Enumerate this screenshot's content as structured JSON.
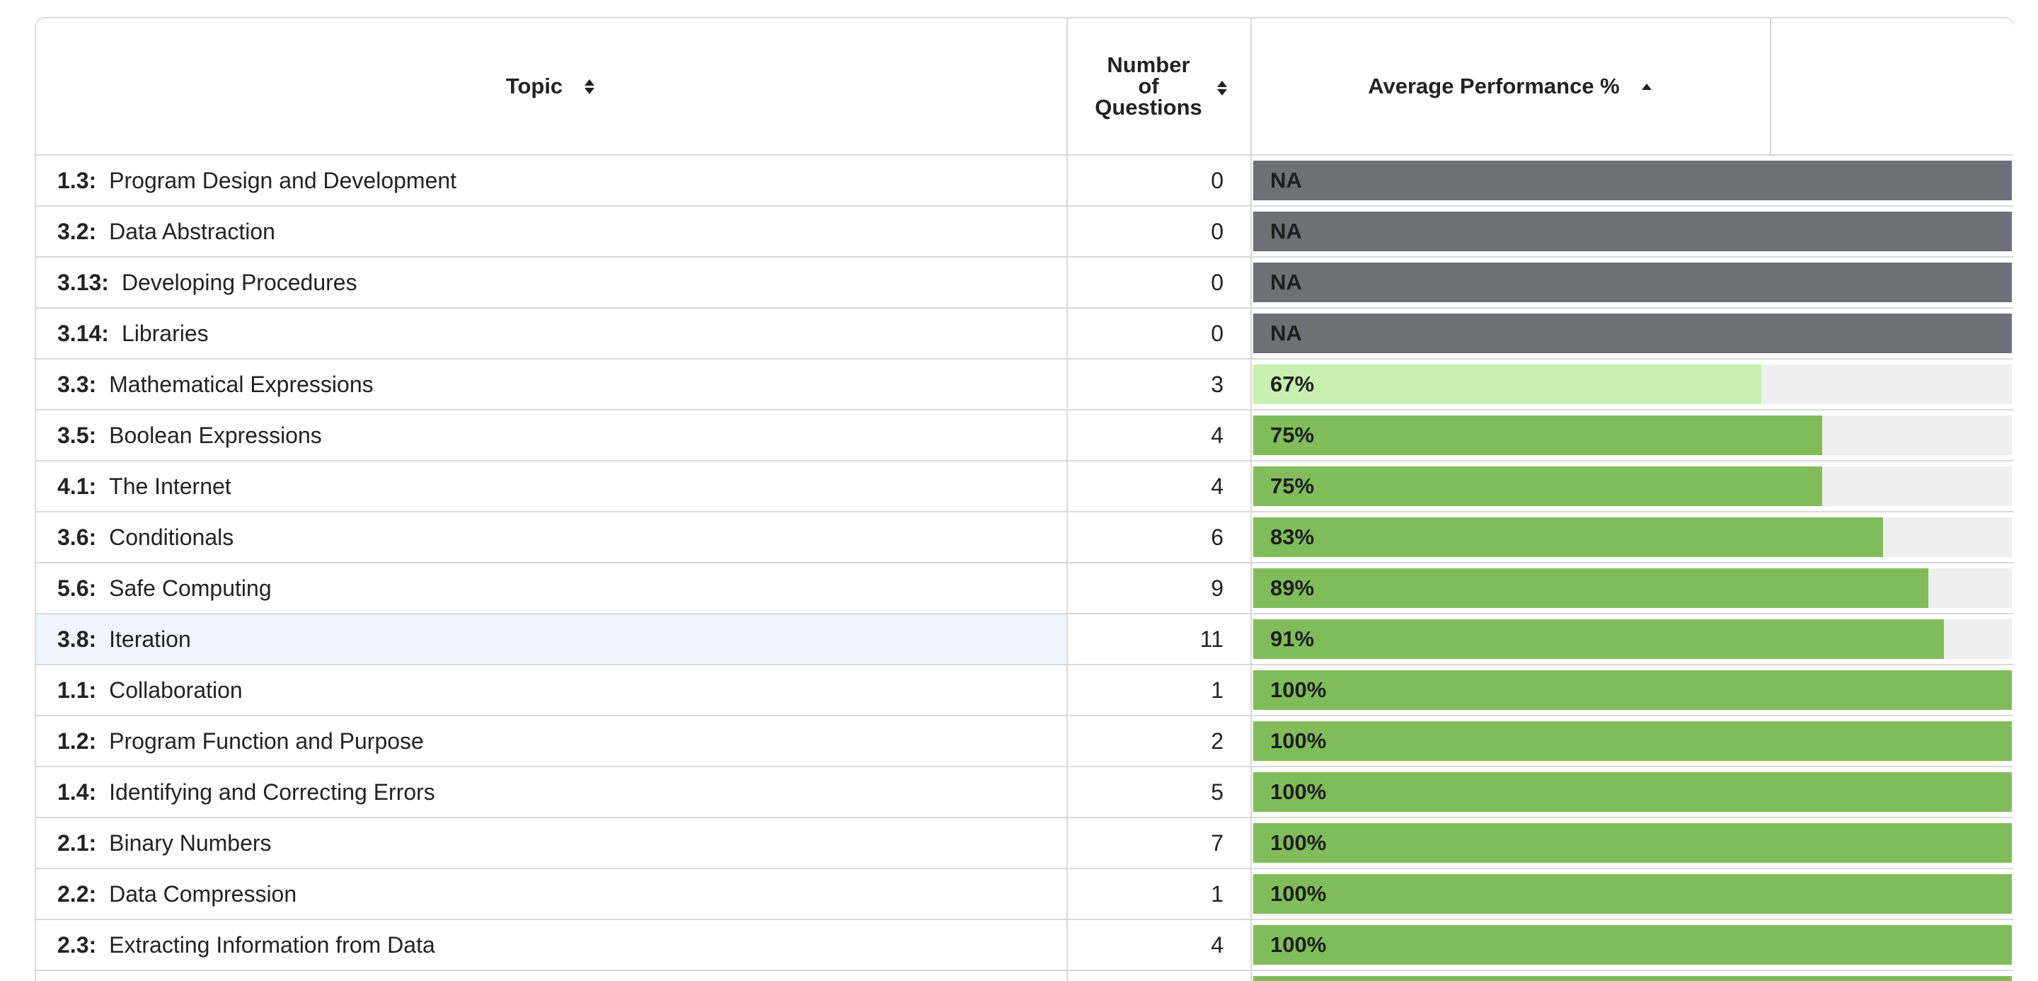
{
  "table": {
    "headers": {
      "topic": "Topic",
      "num_questions": [
        "Number",
        "of",
        "Questions"
      ],
      "avg_performance": "Average Performance %"
    },
    "sort": {
      "column": "avg_performance",
      "direction": "ascending"
    },
    "colors": {
      "na": "#6f6f77",
      "low": "#c8f0b0",
      "high": "#80bd5a",
      "track": "#efefef",
      "highlight_row": "#eef5fd"
    },
    "rows": [
      {
        "code": "1.3:",
        "topic": "Program Design and Development",
        "num": "0",
        "perf_label": "NA",
        "perf_fraction": 1.0,
        "bar_color": "#6f6f77"
      },
      {
        "code": "3.2:",
        "topic": "Data Abstraction",
        "num": "0",
        "perf_label": "NA",
        "perf_fraction": 1.0,
        "bar_color": "#6f6f77"
      },
      {
        "code": "3.13:",
        "topic": "Developing Procedures",
        "num": "0",
        "perf_label": "NA",
        "perf_fraction": 1.0,
        "bar_color": "#6f6f77"
      },
      {
        "code": "3.14:",
        "topic": "Libraries",
        "num": "0",
        "perf_label": "NA",
        "perf_fraction": 1.0,
        "bar_color": "#6f6f77"
      },
      {
        "code": "3.3:",
        "topic": "Mathematical Expressions",
        "num": "3",
        "perf_label": "67%",
        "perf_fraction": 0.67,
        "bar_color": "#c8f0b0"
      },
      {
        "code": "3.5:",
        "topic": "Boolean Expressions",
        "num": "4",
        "perf_label": "75%",
        "perf_fraction": 0.75,
        "bar_color": "#80bd5a"
      },
      {
        "code": "4.1:",
        "topic": "The Internet",
        "num": "4",
        "perf_label": "75%",
        "perf_fraction": 0.75,
        "bar_color": "#80bd5a"
      },
      {
        "code": "3.6:",
        "topic": "Conditionals",
        "num": "6",
        "perf_label": "83%",
        "perf_fraction": 0.83,
        "bar_color": "#80bd5a"
      },
      {
        "code": "5.6:",
        "topic": "Safe Computing",
        "num": "9",
        "perf_label": "89%",
        "perf_fraction": 0.89,
        "bar_color": "#80bd5a"
      },
      {
        "code": "3.8:",
        "topic": "Iteration",
        "num": "11",
        "perf_label": "91%",
        "perf_fraction": 0.91,
        "bar_color": "#80bd5a",
        "highlight": true
      },
      {
        "code": "1.1:",
        "topic": "Collaboration",
        "num": "1",
        "perf_label": "100%",
        "perf_fraction": 1.0,
        "bar_color": "#80bd5a"
      },
      {
        "code": "1.2:",
        "topic": "Program Function and Purpose",
        "num": "2",
        "perf_label": "100%",
        "perf_fraction": 1.0,
        "bar_color": "#80bd5a"
      },
      {
        "code": "1.4:",
        "topic": "Identifying and Correcting Errors",
        "num": "5",
        "perf_label": "100%",
        "perf_fraction": 1.0,
        "bar_color": "#80bd5a"
      },
      {
        "code": "2.1:",
        "topic": "Binary Numbers",
        "num": "7",
        "perf_label": "100%",
        "perf_fraction": 1.0,
        "bar_color": "#80bd5a"
      },
      {
        "code": "2.2:",
        "topic": "Data Compression",
        "num": "1",
        "perf_label": "100%",
        "perf_fraction": 1.0,
        "bar_color": "#80bd5a"
      },
      {
        "code": "2.3:",
        "topic": "Extracting Information from Data",
        "num": "4",
        "perf_label": "100%",
        "perf_fraction": 1.0,
        "bar_color": "#80bd5a"
      },
      {
        "code": "",
        "topic": "",
        "num": "",
        "perf_label": "",
        "perf_fraction": 1.0,
        "bar_color": "#80bd5a"
      }
    ]
  }
}
